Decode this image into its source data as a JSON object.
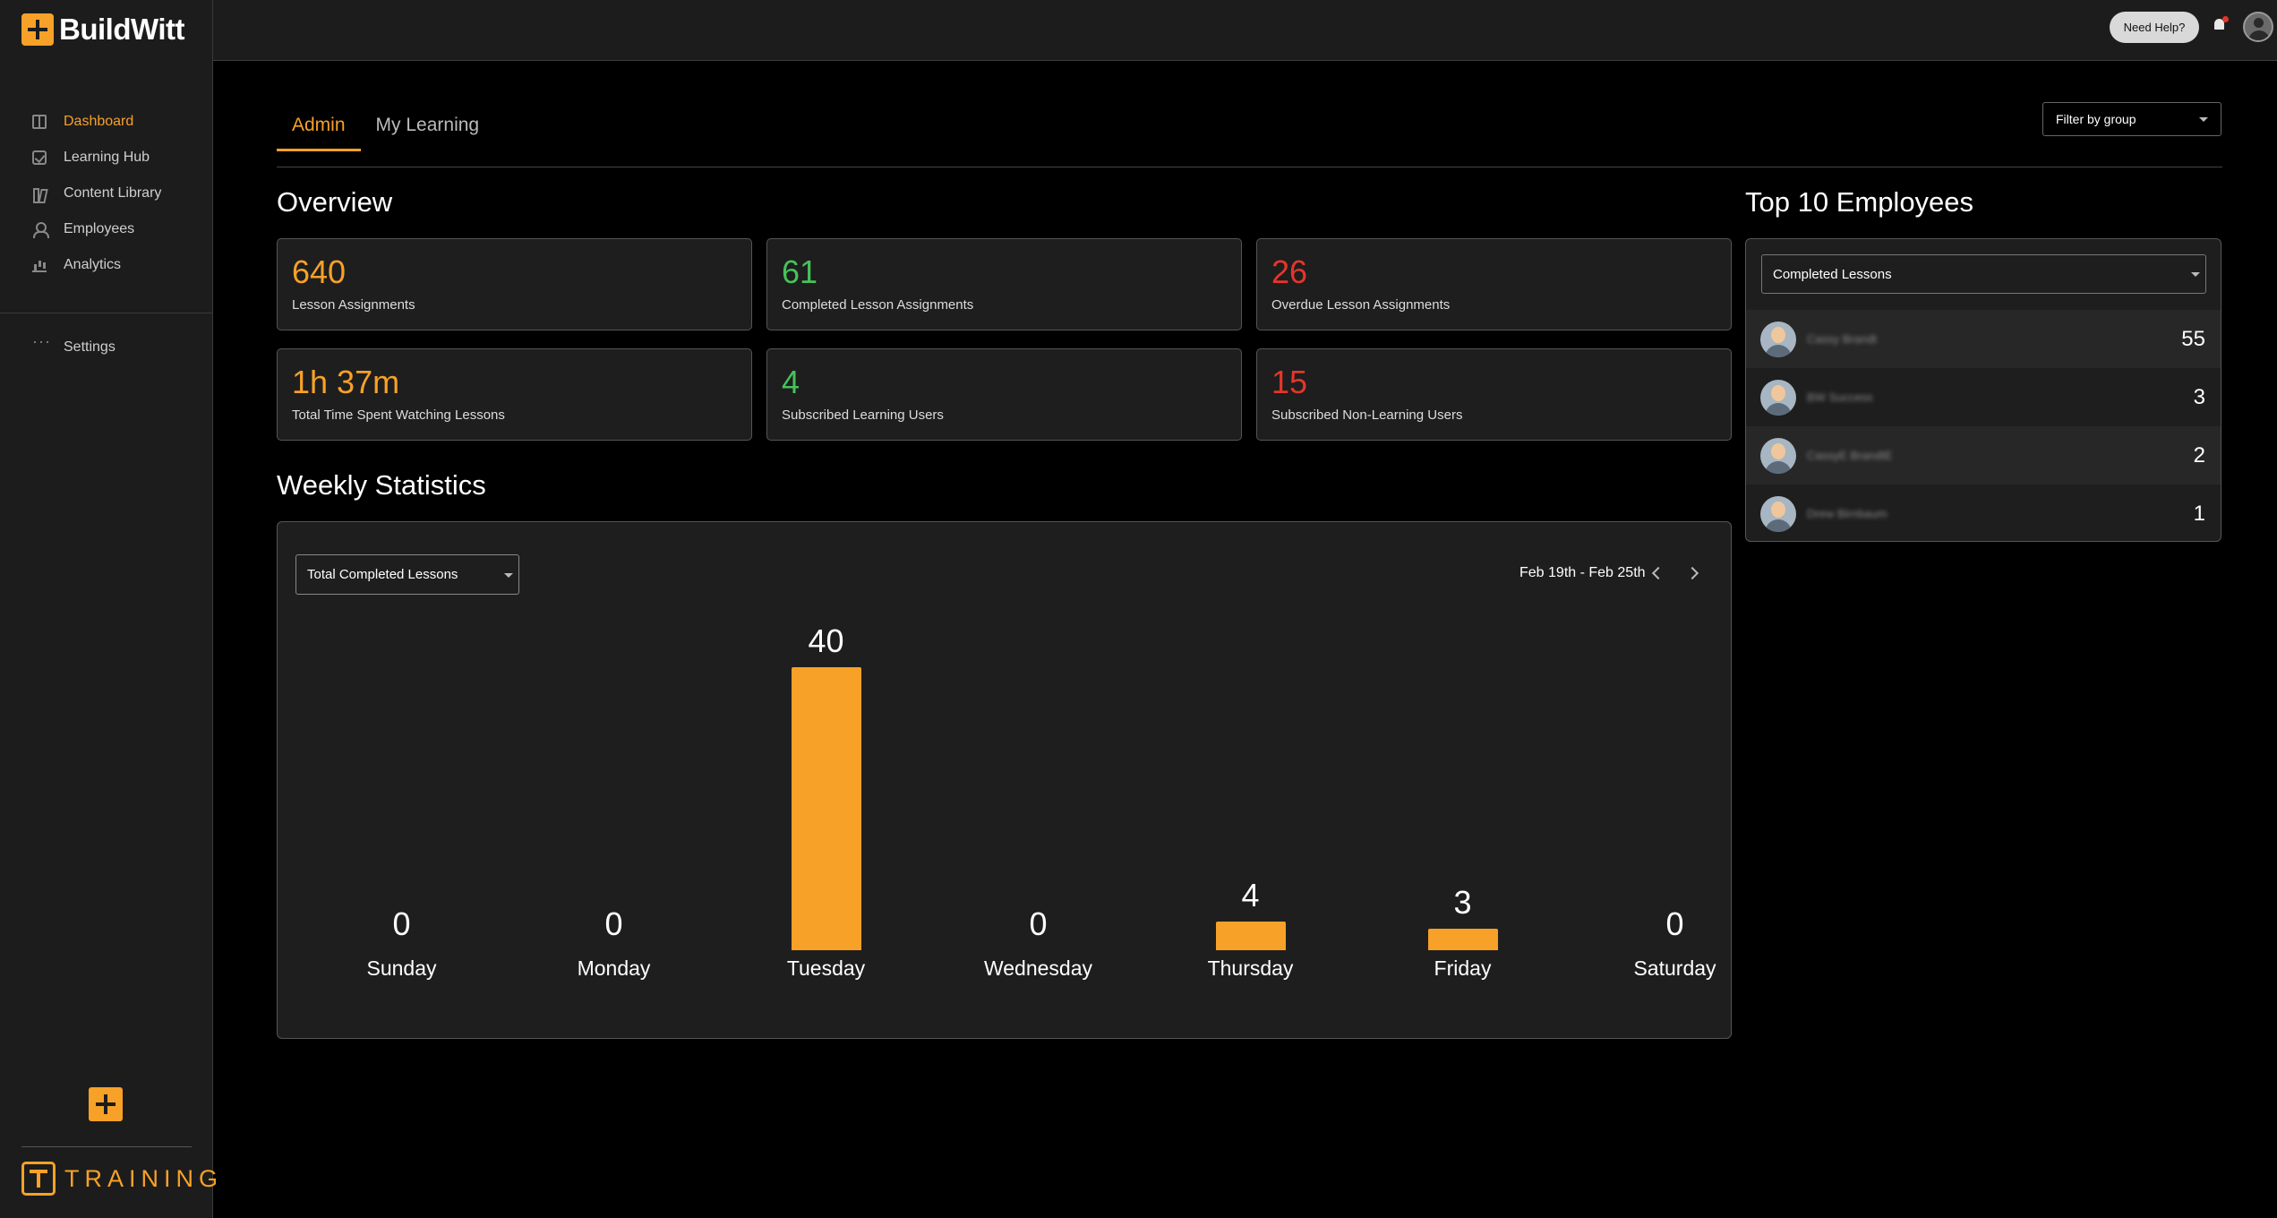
{
  "brand": {
    "name": "BuildWitt",
    "training_label": "TRAINING",
    "accent": "#f7a128"
  },
  "sidebar": {
    "items": [
      {
        "label": "Dashboard",
        "icon": "dashboard-icon",
        "active": true
      },
      {
        "label": "Learning Hub",
        "icon": "checkbox-icon"
      },
      {
        "label": "Content Library",
        "icon": "library-icon"
      },
      {
        "label": "Employees",
        "icon": "person-icon"
      },
      {
        "label": "Analytics",
        "icon": "bar-chart-icon"
      }
    ],
    "settings_label": "Settings"
  },
  "header": {
    "help_label": "Need Help?"
  },
  "tabs": [
    {
      "label": "Admin",
      "active": true
    },
    {
      "label": "My Learning"
    }
  ],
  "filter": {
    "label": "Filter by group"
  },
  "overview": {
    "title": "Overview",
    "cards": [
      {
        "value": "640",
        "label": "Lesson Assignments",
        "color": "#f7a128"
      },
      {
        "value": "61",
        "label": "Completed Lesson Assignments",
        "color": "#46c25b"
      },
      {
        "value": "26",
        "label": "Overdue Lesson Assignments",
        "color": "#e5352b"
      },
      {
        "value": "1h 37m",
        "label": "Total Time Spent Watching Lessons",
        "color": "#f7a128"
      },
      {
        "value": "4",
        "label": "Subscribed Learning Users",
        "color": "#46c25b"
      },
      {
        "value": "15",
        "label": "Subscribed Non-Learning Users",
        "color": "#e5352b"
      }
    ]
  },
  "weekly": {
    "title": "Weekly Statistics",
    "metric_select": "Total Completed Lessons",
    "range": "Feb 19th - Feb 25th"
  },
  "chart_data": {
    "type": "bar",
    "categories": [
      "Sunday",
      "Monday",
      "Tuesday",
      "Wednesday",
      "Thursday",
      "Friday",
      "Saturday"
    ],
    "values": [
      0,
      0,
      40,
      0,
      4,
      3,
      0
    ],
    "title": "",
    "xlabel": "",
    "ylabel": "",
    "bar_color": "#f7a128"
  },
  "top_employees": {
    "title": "Top 10 Employees",
    "metric_select": "Completed Lessons",
    "rows": [
      {
        "name": "Cassy Brandt",
        "count": "55"
      },
      {
        "name": "BW Success",
        "count": "3"
      },
      {
        "name": "CassyE BrandtE",
        "count": "2"
      },
      {
        "name": "Drew Birnbaum",
        "count": "1"
      }
    ]
  }
}
